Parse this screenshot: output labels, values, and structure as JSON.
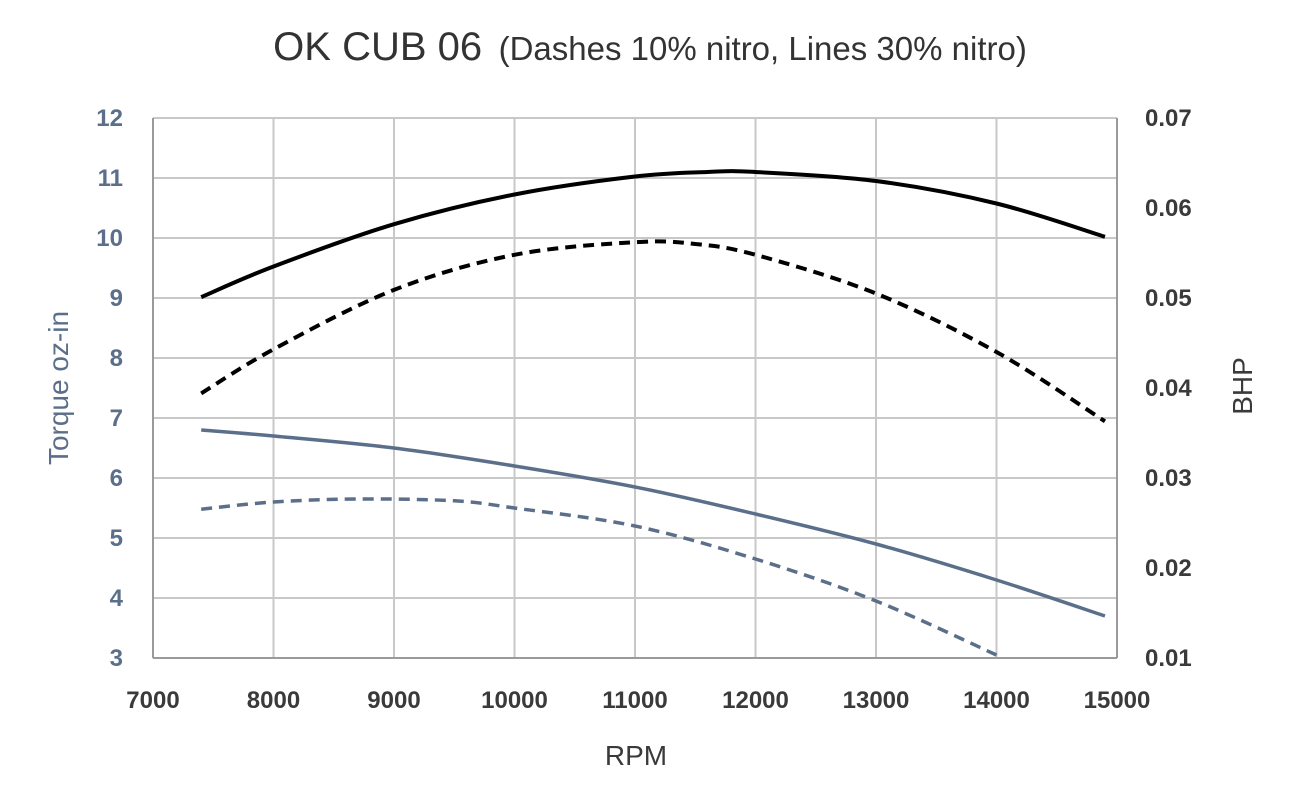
{
  "chart_data": {
    "type": "line",
    "title": "OK CUB 06",
    "subtitle": "(Dashes 10% nitro, Lines 30% nitro)",
    "xlabel": "RPM",
    "ylabel_left": "Torque oz-in",
    "ylabel_right": "BHP",
    "xlim": [
      7000,
      15000
    ],
    "ylim_left": [
      3,
      12
    ],
    "ylim_right": [
      0.01,
      0.07
    ],
    "x_ticks": [
      "7000",
      "8000",
      "9000",
      "10000",
      "11000",
      "12000",
      "13000",
      "14000",
      "15000"
    ],
    "y_left_ticks": [
      "3",
      "4",
      "5",
      "6",
      "7",
      "8",
      "9",
      "10",
      "11",
      "12"
    ],
    "y_right_ticks": [
      "0.01",
      "0.02",
      "0.03",
      "0.04",
      "0.05",
      "0.06",
      "0.07"
    ],
    "grid": true,
    "series": [
      {
        "axis": "right",
        "color": "#000000",
        "dash": "solid",
        "points": [
          [
            7400,
            0.0501
          ],
          [
            8000,
            0.0535
          ],
          [
            9000,
            0.0582
          ],
          [
            10000,
            0.0615
          ],
          [
            11000,
            0.0635
          ],
          [
            11600,
            0.064
          ],
          [
            12000,
            0.064
          ],
          [
            13000,
            0.063
          ],
          [
            14000,
            0.0605
          ],
          [
            14900,
            0.0568
          ]
        ]
      },
      {
        "axis": "right",
        "color": "#000000",
        "dash": "dashed",
        "points": [
          [
            7400,
            0.0394
          ],
          [
            8000,
            0.0443
          ],
          [
            9000,
            0.0509
          ],
          [
            10000,
            0.0548
          ],
          [
            11000,
            0.0562
          ],
          [
            11500,
            0.056
          ],
          [
            12000,
            0.0548
          ],
          [
            13000,
            0.0505
          ],
          [
            14000,
            0.044
          ],
          [
            14900,
            0.0363
          ]
        ]
      },
      {
        "axis": "left",
        "color": "#5b6f8a",
        "dash": "solid",
        "points": [
          [
            7400,
            6.8
          ],
          [
            8000,
            6.7
          ],
          [
            9000,
            6.5
          ],
          [
            10000,
            6.2
          ],
          [
            11000,
            5.85
          ],
          [
            12000,
            5.4
          ],
          [
            13000,
            4.9
          ],
          [
            14000,
            4.3
          ],
          [
            14900,
            3.7
          ]
        ]
      },
      {
        "axis": "left",
        "color": "#5b6f8a",
        "dash": "dashed",
        "points": [
          [
            7400,
            5.48
          ],
          [
            8000,
            5.6
          ],
          [
            8700,
            5.65
          ],
          [
            9500,
            5.62
          ],
          [
            10000,
            5.5
          ],
          [
            11000,
            5.2
          ],
          [
            12000,
            4.65
          ],
          [
            13000,
            3.95
          ],
          [
            14000,
            3.05
          ]
        ]
      }
    ]
  }
}
